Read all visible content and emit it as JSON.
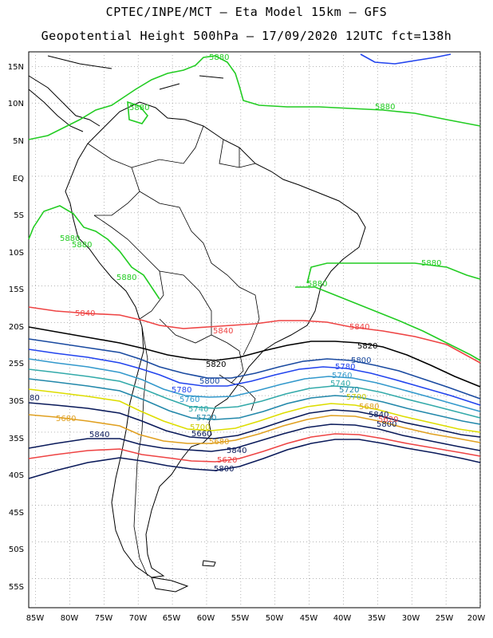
{
  "header": {
    "line1": "CPTEC/INPE/MCT –  Eta Model 15km – GFS",
    "line2": "Geopotential Height 500hPa – 17/09/2020 12UTC fct=138h"
  },
  "map_data": {
    "type": "contour-map",
    "variable": "Geopotential Height 500hPa",
    "lon_range": [
      -86,
      -20
    ],
    "lat_range": [
      -59,
      17
    ],
    "grid": "dotted",
    "lat_labels": [
      "15N",
      "10N",
      "5N",
      "EQ",
      "5S",
      "10S",
      "15S",
      "20S",
      "25S",
      "30S",
      "35S",
      "40S",
      "45S",
      "50S",
      "55S"
    ],
    "lat_values": [
      15,
      10,
      5,
      0,
      -5,
      -10,
      -15,
      -20,
      -25,
      -30,
      -35,
      -40,
      -45,
      -50,
      -55
    ],
    "lon_labels": [
      "85W",
      "80W",
      "75W",
      "70W",
      "65W",
      "60W",
      "55W",
      "50W",
      "45W",
      "40W",
      "35W",
      "30W",
      "25W",
      "20W"
    ],
    "lon_values": [
      -85,
      -80,
      -75,
      -70,
      -65,
      -60,
      -55,
      -50,
      -45,
      -40,
      -35,
      -30,
      -25,
      -20
    ],
    "contours": [
      {
        "value": 5880,
        "color": "#22cc22",
        "labels": [
          "5880",
          "5880",
          "5880",
          "5880",
          "5880",
          "5880",
          "5880"
        ]
      },
      {
        "value": 5840,
        "color": "#ee4444",
        "labels": [
          "5840",
          "5840",
          "5840",
          "5840",
          "5840"
        ]
      },
      {
        "value": 5820,
        "color": "#000000",
        "labels": [
          "5820",
          "5820"
        ]
      },
      {
        "value": 5800,
        "color": "#1a4aa0",
        "labels": [
          "5800",
          "5800",
          "5800"
        ]
      },
      {
        "value": 5780,
        "color": "#2244ee",
        "labels": [
          "5780",
          "5780"
        ]
      },
      {
        "value": 5760,
        "color": "#3399cc",
        "labels": [
          "5760",
          "5760"
        ]
      },
      {
        "value": 5740,
        "color": "#33aaaa",
        "labels": [
          "5740",
          "5740"
        ]
      },
      {
        "value": 5720,
        "color": "#2288aa",
        "labels": [
          "5720",
          "5720"
        ]
      },
      {
        "value": 5700,
        "color": "#dddd00",
        "labels": [
          "5700",
          "5700"
        ]
      },
      {
        "value": 5680,
        "color": "#e0a020",
        "labels": [
          "5680",
          "5680",
          "5680"
        ]
      },
      {
        "value": 5660,
        "color": "#0a1a5a",
        "labels": [
          "5660"
        ]
      }
    ],
    "extra_label": "80"
  },
  "colors": {
    "coast": "#000000",
    "grid": "#888888",
    "blue_top": "#2244ee"
  }
}
